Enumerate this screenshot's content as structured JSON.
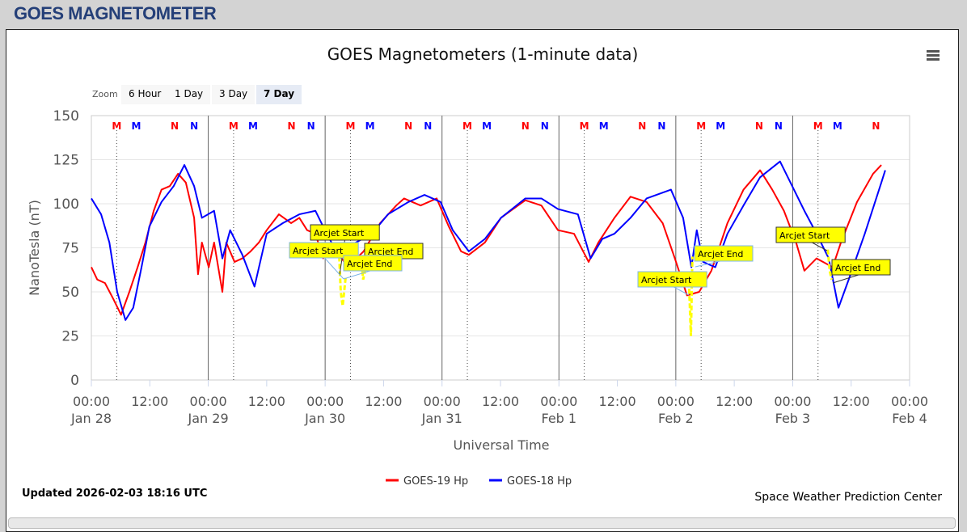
{
  "header": "GOES MAGNETOMETER",
  "zoom": {
    "label": "Zoom",
    "buttons": [
      "6 Hour",
      "1 Day",
      "3 Day",
      "7 Day"
    ],
    "selected": "7 Day"
  },
  "menu_icon": "hamburger-icon",
  "updated": "Updated 2026-02-03 18:16 UTC",
  "credit": "Space Weather Prediction Center",
  "chart_data": {
    "type": "line",
    "title": "GOES Magnetometers (1-minute data)",
    "xlabel": "Universal Time",
    "ylabel": "NanoTesla (nT)",
    "ylim": [
      0,
      150
    ],
    "yticks": [
      0,
      25,
      50,
      75,
      100,
      125,
      150
    ],
    "xlim_hours": [
      0,
      168
    ],
    "xticks": [
      {
        "t": "00:00",
        "d": "Jan 28"
      },
      {
        "t": "12:00",
        "d": ""
      },
      {
        "t": "00:00",
        "d": "Jan 29"
      },
      {
        "t": "12:00",
        "d": ""
      },
      {
        "t": "00:00",
        "d": "Jan 30"
      },
      {
        "t": "12:00",
        "d": ""
      },
      {
        "t": "00:00",
        "d": "Jan 31"
      },
      {
        "t": "12:00",
        "d": ""
      },
      {
        "t": "00:00",
        "d": "Feb 1"
      },
      {
        "t": "12:00",
        "d": ""
      },
      {
        "t": "00:00",
        "d": "Feb 2"
      },
      {
        "t": "12:00",
        "d": ""
      },
      {
        "t": "00:00",
        "d": "Feb 3"
      },
      {
        "t": "12:00",
        "d": ""
      },
      {
        "t": "00:00",
        "d": "Feb 4"
      }
    ],
    "grid": true,
    "legend": "bottom-center",
    "markers": [
      {
        "l": "M",
        "c": "#ff0000",
        "h": 5.2
      },
      {
        "l": "M",
        "c": "#0000ff",
        "h": 9.2
      },
      {
        "l": "N",
        "c": "#ff0000",
        "h": 17.1
      },
      {
        "l": "N",
        "c": "#0000ff",
        "h": 21.1
      }
    ],
    "series": [
      {
        "name": "GOES-19 Hp",
        "color": "#ff0000",
        "x": [
          0,
          1.2,
          2.8,
          4.5,
          6.1,
          7.8,
          9.5,
          11.1,
          12.8,
          14.4,
          16.1,
          17.8,
          19.4,
          21.1,
          21.9,
          22.7,
          24.1,
          25.2,
          26.9,
          27.7,
          29.4,
          31.0,
          32.7,
          34.4,
          36.0,
          38.5,
          41.0,
          42.7,
          44.3,
          46.0,
          47.6,
          49.3,
          52.6,
          55.9,
          59.3,
          62.6,
          64.2,
          67.6,
          70.9,
          73.4,
          75.9,
          77.5,
          80.8,
          84.1,
          89.1,
          92.4,
          95.8,
          99.1,
          102.1,
          104.1,
          107.4,
          110.7,
          114.0,
          117.3,
          119.8,
          122.3,
          124.8,
          127.3,
          130.6,
          133.9,
          137.3,
          139.8,
          142.2,
          144.7,
          146.4,
          148.9,
          152.2,
          153.9,
          157.2,
          160.5,
          162.2
        ],
        "y": [
          64,
          57,
          55,
          46,
          37,
          50,
          64,
          78,
          96,
          108,
          110,
          117,
          112,
          92,
          60,
          78,
          64,
          78,
          50,
          78,
          67,
          69,
          73,
          78,
          85,
          94,
          89,
          92,
          85,
          83,
          69,
          78,
          64,
          73,
          89,
          99,
          103,
          99,
          103,
          87,
          73,
          71,
          78,
          92,
          102,
          99,
          85,
          83,
          67,
          78,
          92,
          104,
          101,
          89,
          69,
          48,
          50,
          62,
          89,
          108,
          119,
          108,
          96,
          78,
          62,
          69,
          64,
          78,
          101,
          117,
          122
        ]
      },
      {
        "name": "GOES-18 Hp",
        "color": "#0000ff",
        "x": [
          0,
          2.0,
          3.7,
          5.3,
          7.0,
          8.6,
          10.3,
          11.9,
          14.4,
          16.9,
          19.1,
          21.1,
          22.7,
          25.2,
          26.9,
          28.5,
          31.0,
          33.5,
          36.0,
          39.3,
          42.7,
          46.0,
          47.6,
          51.0,
          54.3,
          57.6,
          60.9,
          65.1,
          68.4,
          71.7,
          74.2,
          77.5,
          80.8,
          84.1,
          89.1,
          92.4,
          95.8,
          99.9,
          102.5,
          104.9,
          107.4,
          110.7,
          114.0,
          119.0,
          121.5,
          123.2,
          124.3,
          125.6,
          128.1,
          130.6,
          133.9,
          137.3,
          141.4,
          143.9,
          146.4,
          148.9,
          151.4,
          153.4,
          155.5,
          158.8,
          162.2,
          163.0
        ],
        "y": [
          103,
          94,
          78,
          50,
          34,
          41,
          64,
          87,
          101,
          110,
          122,
          110,
          92,
          96,
          69,
          85,
          71,
          53,
          83,
          89,
          94,
          96,
          87,
          69,
          78,
          83,
          94,
          101,
          105,
          101,
          85,
          73,
          80,
          92,
          103,
          103,
          97,
          94,
          69,
          80,
          83,
          92,
          103,
          108,
          92,
          64,
          85,
          67,
          64,
          83,
          99,
          115,
          124,
          110,
          96,
          83,
          69,
          41,
          57,
          83,
          112,
          119
        ]
      }
    ],
    "arcjet": {
      "color": "#ffff00",
      "segments": [
        {
          "x": [
            50.9,
            51.2,
            51.6,
            52.2
          ],
          "y": [
            70,
            50,
            42,
            58
          ]
        },
        {
          "x": [
            55.5,
            55.8,
            56.2
          ],
          "y": [
            66,
            57,
            62
          ]
        },
        {
          "x": [
            122.6,
            122.8,
            123.1,
            123.4
          ],
          "y": [
            60,
            48,
            25,
            70
          ]
        },
        {
          "x": [
            151.2,
            151.6,
            152.0
          ],
          "y": [
            74,
            62,
            57
          ]
        }
      ],
      "labels": [
        "Arcjet Start",
        "Arcjet Start",
        "Arcjet End",
        "Arcjet End",
        "Arcjet Start",
        "Arcjet End",
        "Arcjet Start",
        "Arcjet End"
      ]
    }
  }
}
